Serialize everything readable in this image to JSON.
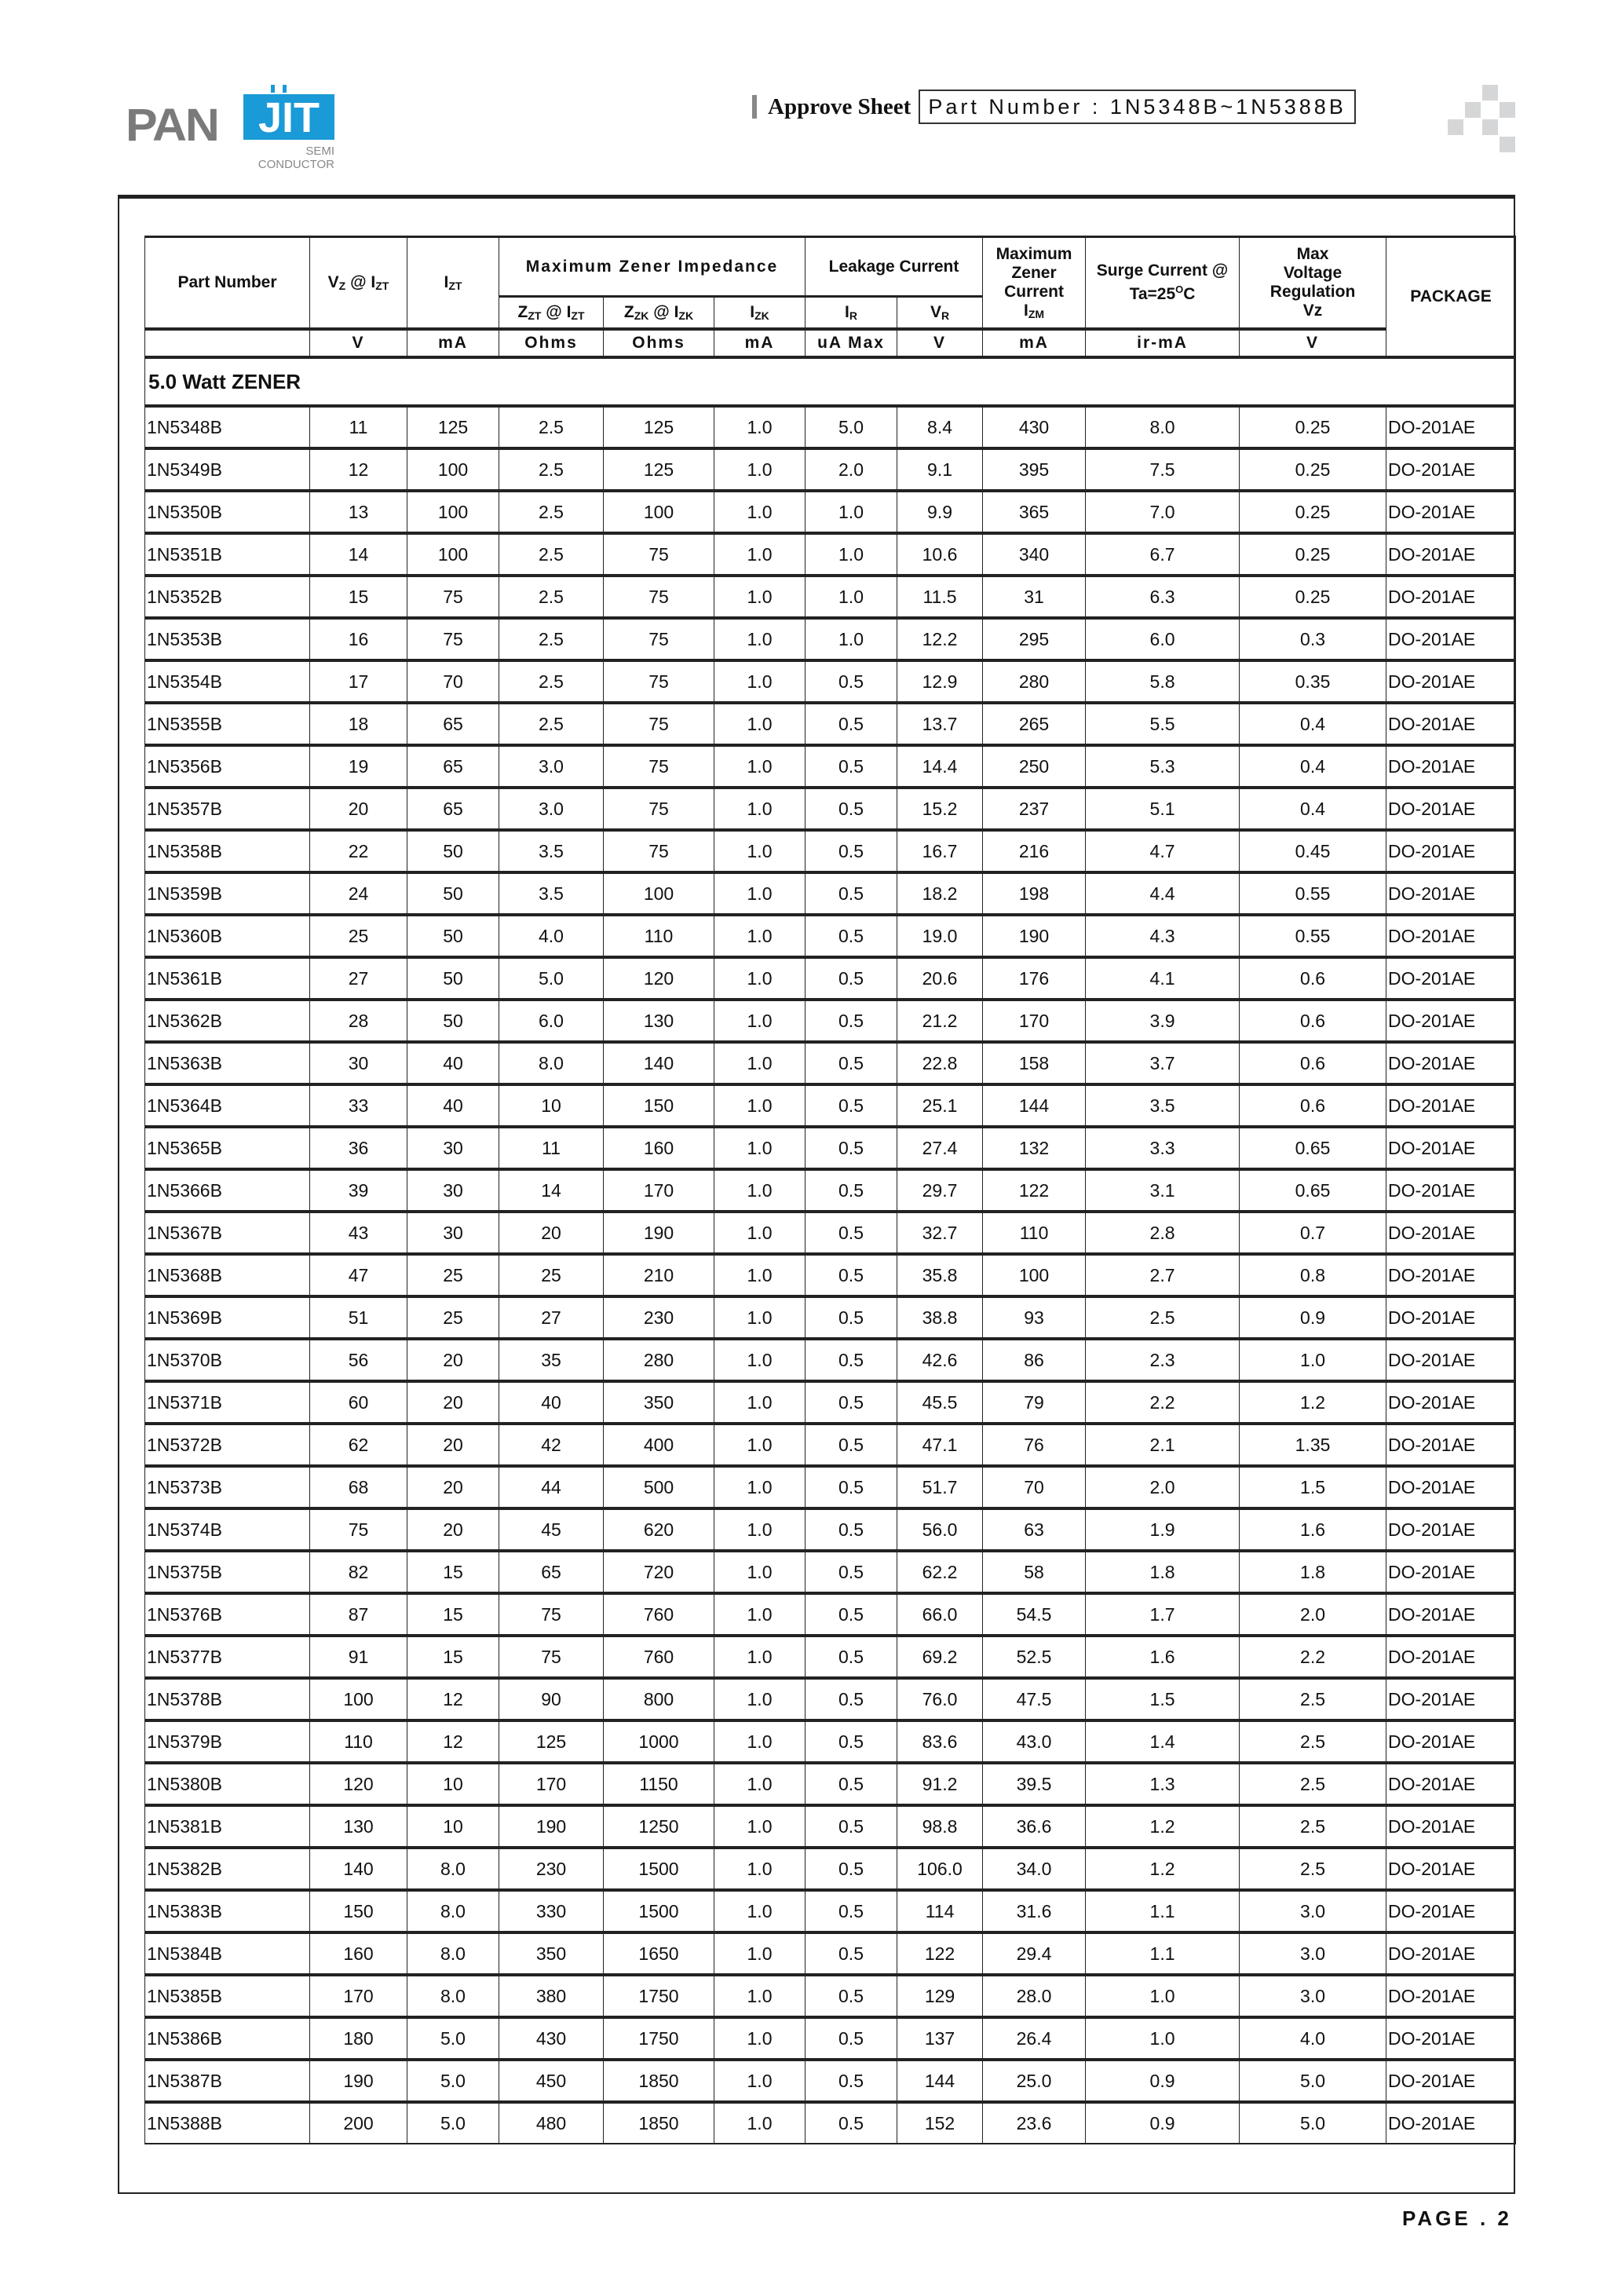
{
  "header": {
    "logo_text": "PANJIT",
    "logo_sub": "SEMI CONDUCTOR",
    "approve_label": "Approve Sheet",
    "part_number_label": "Part Number : 1N5348B~1N5388B"
  },
  "table": {
    "columns": {
      "part_number": "Part Number",
      "vz": {
        "a": "V",
        "as": "Z",
        "b": " @ I",
        "bs": "ZT"
      },
      "izt": {
        "a": "I",
        "as": "ZT"
      },
      "impedance": "Maximum Zener Impedance",
      "zzt": {
        "a": "Z",
        "as": "ZT",
        "b": " @ I",
        "bs": "ZT"
      },
      "zzk": {
        "a": "Z",
        "as": "ZK",
        "b": " @ I",
        "bs": "ZK"
      },
      "izk": {
        "a": "I",
        "as": "ZK"
      },
      "leakage": "Leakage Current",
      "ir": {
        "a": "I",
        "as": "R"
      },
      "vr": {
        "a": "V",
        "as": "R"
      },
      "izm": {
        "a": "Maximum",
        "b": "Zener",
        "c": "Current",
        "d": "I",
        "ds": "ZM"
      },
      "surge": {
        "a": "Surge Current @",
        "b": "Ta=25",
        "sup": "O",
        "c": "C"
      },
      "regulation": {
        "a": "Max",
        "b": "Voltage",
        "c": "Regulation",
        "d": "Vz"
      },
      "package": "PACKAGE"
    },
    "units": [
      "V",
      "mA",
      "Ohms",
      "Ohms",
      "mA",
      "uA Max",
      "V",
      "mA",
      "ir-mA",
      "V"
    ],
    "section_title": "5.0 Watt ZENER",
    "rows": [
      [
        "1N5348B",
        "11",
        "125",
        "2.5",
        "125",
        "1.0",
        "5.0",
        "8.4",
        "430",
        "8.0",
        "0.25",
        "DO-201AE"
      ],
      [
        "1N5349B",
        "12",
        "100",
        "2.5",
        "125",
        "1.0",
        "2.0",
        "9.1",
        "395",
        "7.5",
        "0.25",
        "DO-201AE"
      ],
      [
        "1N5350B",
        "13",
        "100",
        "2.5",
        "100",
        "1.0",
        "1.0",
        "9.9",
        "365",
        "7.0",
        "0.25",
        "DO-201AE"
      ],
      [
        "1N5351B",
        "14",
        "100",
        "2.5",
        "75",
        "1.0",
        "1.0",
        "10.6",
        "340",
        "6.7",
        "0.25",
        "DO-201AE"
      ],
      [
        "1N5352B",
        "15",
        "75",
        "2.5",
        "75",
        "1.0",
        "1.0",
        "11.5",
        "31",
        "6.3",
        "0.25",
        "DO-201AE"
      ],
      [
        "1N5353B",
        "16",
        "75",
        "2.5",
        "75",
        "1.0",
        "1.0",
        "12.2",
        "295",
        "6.0",
        "0.3",
        "DO-201AE"
      ],
      [
        "1N5354B",
        "17",
        "70",
        "2.5",
        "75",
        "1.0",
        "0.5",
        "12.9",
        "280",
        "5.8",
        "0.35",
        "DO-201AE"
      ],
      [
        "1N5355B",
        "18",
        "65",
        "2.5",
        "75",
        "1.0",
        "0.5",
        "13.7",
        "265",
        "5.5",
        "0.4",
        "DO-201AE"
      ],
      [
        "1N5356B",
        "19",
        "65",
        "3.0",
        "75",
        "1.0",
        "0.5",
        "14.4",
        "250",
        "5.3",
        "0.4",
        "DO-201AE"
      ],
      [
        "1N5357B",
        "20",
        "65",
        "3.0",
        "75",
        "1.0",
        "0.5",
        "15.2",
        "237",
        "5.1",
        "0.4",
        "DO-201AE"
      ],
      [
        "1N5358B",
        "22",
        "50",
        "3.5",
        "75",
        "1.0",
        "0.5",
        "16.7",
        "216",
        "4.7",
        "0.45",
        "DO-201AE"
      ],
      [
        "1N5359B",
        "24",
        "50",
        "3.5",
        "100",
        "1.0",
        "0.5",
        "18.2",
        "198",
        "4.4",
        "0.55",
        "DO-201AE"
      ],
      [
        "1N5360B",
        "25",
        "50",
        "4.0",
        "110",
        "1.0",
        "0.5",
        "19.0",
        "190",
        "4.3",
        "0.55",
        "DO-201AE"
      ],
      [
        "1N5361B",
        "27",
        "50",
        "5.0",
        "120",
        "1.0",
        "0.5",
        "20.6",
        "176",
        "4.1",
        "0.6",
        "DO-201AE"
      ],
      [
        "1N5362B",
        "28",
        "50",
        "6.0",
        "130",
        "1.0",
        "0.5",
        "21.2",
        "170",
        "3.9",
        "0.6",
        "DO-201AE"
      ],
      [
        "1N5363B",
        "30",
        "40",
        "8.0",
        "140",
        "1.0",
        "0.5",
        "22.8",
        "158",
        "3.7",
        "0.6",
        "DO-201AE"
      ],
      [
        "1N5364B",
        "33",
        "40",
        "10",
        "150",
        "1.0",
        "0.5",
        "25.1",
        "144",
        "3.5",
        "0.6",
        "DO-201AE"
      ],
      [
        "1N5365B",
        "36",
        "30",
        "11",
        "160",
        "1.0",
        "0.5",
        "27.4",
        "132",
        "3.3",
        "0.65",
        "DO-201AE"
      ],
      [
        "1N5366B",
        "39",
        "30",
        "14",
        "170",
        "1.0",
        "0.5",
        "29.7",
        "122",
        "3.1",
        "0.65",
        "DO-201AE"
      ],
      [
        "1N5367B",
        "43",
        "30",
        "20",
        "190",
        "1.0",
        "0.5",
        "32.7",
        "110",
        "2.8",
        "0.7",
        "DO-201AE"
      ],
      [
        "1N5368B",
        "47",
        "25",
        "25",
        "210",
        "1.0",
        "0.5",
        "35.8",
        "100",
        "2.7",
        "0.8",
        "DO-201AE"
      ],
      [
        "1N5369B",
        "51",
        "25",
        "27",
        "230",
        "1.0",
        "0.5",
        "38.8",
        "93",
        "2.5",
        "0.9",
        "DO-201AE"
      ],
      [
        "1N5370B",
        "56",
        "20",
        "35",
        "280",
        "1.0",
        "0.5",
        "42.6",
        "86",
        "2.3",
        "1.0",
        "DO-201AE"
      ],
      [
        "1N5371B",
        "60",
        "20",
        "40",
        "350",
        "1.0",
        "0.5",
        "45.5",
        "79",
        "2.2",
        "1.2",
        "DO-201AE"
      ],
      [
        "1N5372B",
        "62",
        "20",
        "42",
        "400",
        "1.0",
        "0.5",
        "47.1",
        "76",
        "2.1",
        "1.35",
        "DO-201AE"
      ],
      [
        "1N5373B",
        "68",
        "20",
        "44",
        "500",
        "1.0",
        "0.5",
        "51.7",
        "70",
        "2.0",
        "1.5",
        "DO-201AE"
      ],
      [
        "1N5374B",
        "75",
        "20",
        "45",
        "620",
        "1.0",
        "0.5",
        "56.0",
        "63",
        "1.9",
        "1.6",
        "DO-201AE"
      ],
      [
        "1N5375B",
        "82",
        "15",
        "65",
        "720",
        "1.0",
        "0.5",
        "62.2",
        "58",
        "1.8",
        "1.8",
        "DO-201AE"
      ],
      [
        "1N5376B",
        "87",
        "15",
        "75",
        "760",
        "1.0",
        "0.5",
        "66.0",
        "54.5",
        "1.7",
        "2.0",
        "DO-201AE"
      ],
      [
        "1N5377B",
        "91",
        "15",
        "75",
        "760",
        "1.0",
        "0.5",
        "69.2",
        "52.5",
        "1.6",
        "2.2",
        "DO-201AE"
      ],
      [
        "1N5378B",
        "100",
        "12",
        "90",
        "800",
        "1.0",
        "0.5",
        "76.0",
        "47.5",
        "1.5",
        "2.5",
        "DO-201AE"
      ],
      [
        "1N5379B",
        "110",
        "12",
        "125",
        "1000",
        "1.0",
        "0.5",
        "83.6",
        "43.0",
        "1.4",
        "2.5",
        "DO-201AE"
      ],
      [
        "1N5380B",
        "120",
        "10",
        "170",
        "1150",
        "1.0",
        "0.5",
        "91.2",
        "39.5",
        "1.3",
        "2.5",
        "DO-201AE"
      ],
      [
        "1N5381B",
        "130",
        "10",
        "190",
        "1250",
        "1.0",
        "0.5",
        "98.8",
        "36.6",
        "1.2",
        "2.5",
        "DO-201AE"
      ],
      [
        "1N5382B",
        "140",
        "8.0",
        "230",
        "1500",
        "1.0",
        "0.5",
        "106.0",
        "34.0",
        "1.2",
        "2.5",
        "DO-201AE"
      ],
      [
        "1N5383B",
        "150",
        "8.0",
        "330",
        "1500",
        "1.0",
        "0.5",
        "114",
        "31.6",
        "1.1",
        "3.0",
        "DO-201AE"
      ],
      [
        "1N5384B",
        "160",
        "8.0",
        "350",
        "1650",
        "1.0",
        "0.5",
        "122",
        "29.4",
        "1.1",
        "3.0",
        "DO-201AE"
      ],
      [
        "1N5385B",
        "170",
        "8.0",
        "380",
        "1750",
        "1.0",
        "0.5",
        "129",
        "28.0",
        "1.0",
        "3.0",
        "DO-201AE"
      ],
      [
        "1N5386B",
        "180",
        "5.0",
        "430",
        "1750",
        "1.0",
        "0.5",
        "137",
        "26.4",
        "1.0",
        "4.0",
        "DO-201AE"
      ],
      [
        "1N5387B",
        "190",
        "5.0",
        "450",
        "1850",
        "1.0",
        "0.5",
        "144",
        "25.0",
        "0.9",
        "5.0",
        "DO-201AE"
      ],
      [
        "1N5388B",
        "200",
        "5.0",
        "480",
        "1850",
        "1.0",
        "0.5",
        "152",
        "23.6",
        "0.9",
        "5.0",
        "DO-201AE"
      ]
    ]
  },
  "footer": {
    "page_label": "PAGE . 2"
  },
  "colors": {
    "logo_blue": "#1a9ad6",
    "logo_gray": "#7a7a7a",
    "deco_gray": "#d4d6d8"
  }
}
